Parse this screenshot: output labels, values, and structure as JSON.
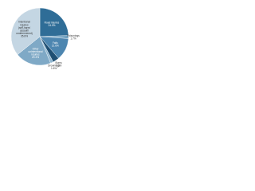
{
  "chart_data": {
    "type": "pie",
    "categories": [
      "Road injuries",
      "Poisonings",
      "Falls",
      "Burns",
      "Drownings",
      "Other unintentional injuries",
      "Intentional injuries (self-harm/ assault/ undetermined)"
    ],
    "values": [
      24.4,
      1.7,
      12.6,
      3.6,
      1.6,
      20.3,
      35.8
    ],
    "value_labels": [
      "24.4%",
      "1.7%",
      "12.6%",
      "3.6%",
      "1.6%",
      "20.3%",
      "35.8%"
    ],
    "colors": [
      "#2f6d97",
      "#6fa0c0",
      "#4d86b0",
      "#1f4f73",
      "#8fb6d0",
      "#7fa9c6",
      "#c4d6e3"
    ]
  }
}
